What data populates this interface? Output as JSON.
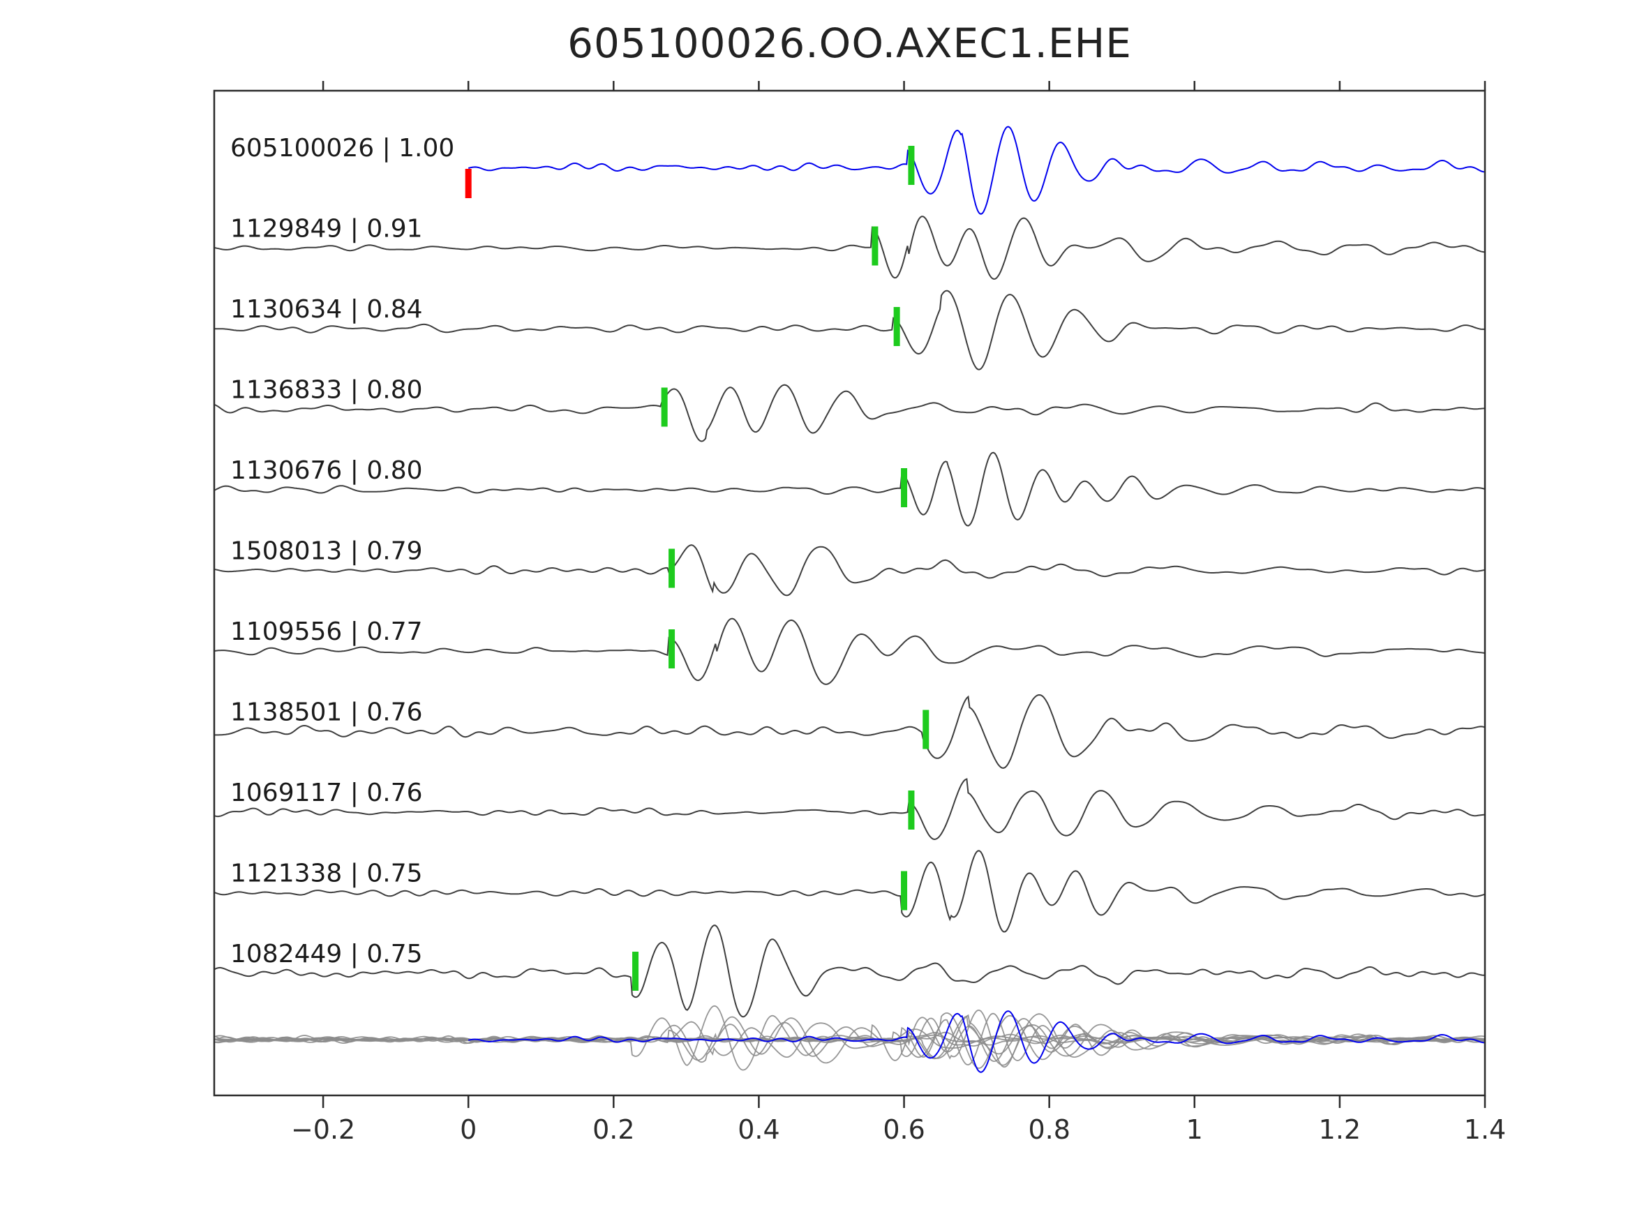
{
  "title": "605100026.OO.AXEC1.EHE",
  "chart_data": {
    "type": "line",
    "title": "605100026.OO.AXEC1.EHE",
    "xlabel": "",
    "ylabel": "",
    "xlim": [
      -0.35,
      1.4
    ],
    "grid": false,
    "legend": "none",
    "x_ticks": [
      {
        "value": -0.2,
        "label": "−0.2"
      },
      {
        "value": 0,
        "label": "0"
      },
      {
        "value": 0.2,
        "label": "0.2"
      },
      {
        "value": 0.4,
        "label": "0.4"
      },
      {
        "value": 0.6,
        "label": "0.6"
      },
      {
        "value": 0.8,
        "label": "0.8"
      },
      {
        "value": 1,
        "label": "1"
      },
      {
        "value": 1.2,
        "label": "1.2"
      },
      {
        "value": 1.4,
        "label": "1.4"
      }
    ],
    "traces": [
      {
        "label": "605100026 | 1.00",
        "id": "605100026",
        "correlation": 1.0,
        "pick_x": 0.61,
        "ref_marker_x": 0.0,
        "role": "reference",
        "trace_start_x": 0.0
      },
      {
        "label": "1129849 | 0.91",
        "id": "1129849",
        "correlation": 0.91,
        "pick_x": 0.56,
        "role": "match"
      },
      {
        "label": "1130634 | 0.84",
        "id": "1130634",
        "correlation": 0.84,
        "pick_x": 0.59,
        "role": "match"
      },
      {
        "label": "1136833 | 0.80",
        "id": "1136833",
        "correlation": 0.8,
        "pick_x": 0.27,
        "role": "match"
      },
      {
        "label": "1130676 | 0.80",
        "id": "1130676",
        "correlation": 0.8,
        "pick_x": 0.6,
        "role": "match"
      },
      {
        "label": "1508013 | 0.79",
        "id": "1508013",
        "correlation": 0.79,
        "pick_x": 0.28,
        "role": "match"
      },
      {
        "label": "1109556 | 0.77",
        "id": "1109556",
        "correlation": 0.77,
        "pick_x": 0.28,
        "role": "match"
      },
      {
        "label": "1138501 | 0.76",
        "id": "1138501",
        "correlation": 0.76,
        "pick_x": 0.63,
        "role": "match"
      },
      {
        "label": "1069117 | 0.76",
        "id": "1069117",
        "correlation": 0.76,
        "pick_x": 0.61,
        "role": "match"
      },
      {
        "label": "1121338 | 0.75",
        "id": "1121338",
        "correlation": 0.75,
        "pick_x": 0.6,
        "role": "match"
      },
      {
        "label": "1082449 | 0.75",
        "id": "1082449",
        "correlation": 0.75,
        "pick_x": 0.23,
        "role": "match"
      }
    ],
    "overlay_row": {
      "description": "all traces superimposed at bottom, gray matches with blue reference on top",
      "gray_count": 10,
      "highlight": "reference"
    },
    "colors": {
      "reference": "#0000ee",
      "trace": "#3d3d3d",
      "overlay_gray": "#8b8b8b",
      "pick": "#1ecb1e",
      "ref_pick": "#ff0000",
      "axis": "#2b2b2b",
      "text": "#1a1a1a"
    }
  }
}
